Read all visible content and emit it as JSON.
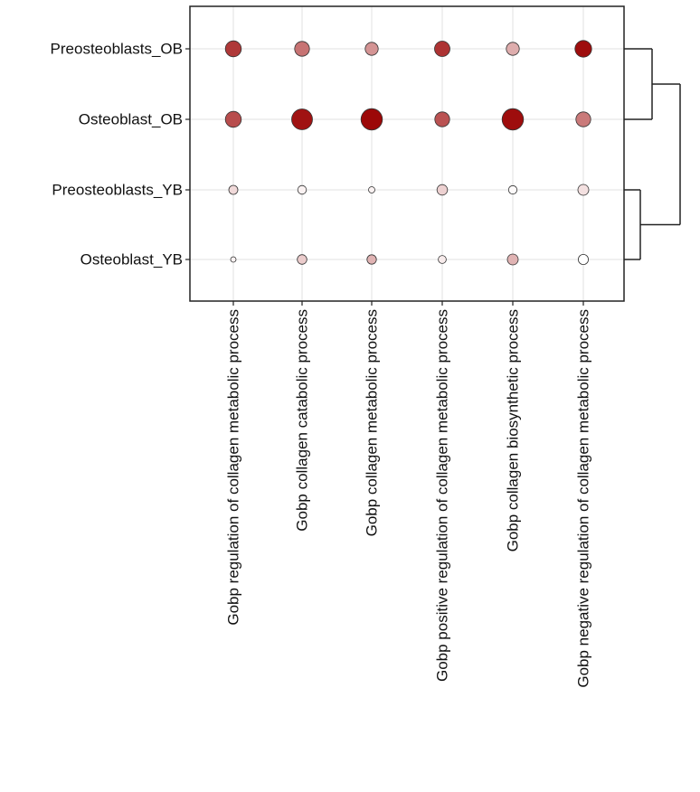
{
  "chart_data": {
    "type": "dot",
    "rows": [
      "Preosteoblasts_OB",
      "Osteoblast_OB",
      "Preosteoblasts_YB",
      "Osteoblast_YB"
    ],
    "columns": [
      "Gobp regulation of collagen metabolic process",
      "Gobp collagen catabolic process",
      "Gobp collagen metabolic process",
      "Gobp positive regulation of collagen metabolic process",
      "Gobp collagen biosynthetic process",
      "Gobp negative regulation of collagen metabolic process"
    ],
    "size": [
      [
        0.68,
        0.62,
        0.52,
        0.65,
        0.52,
        0.72
      ],
      [
        0.68,
        0.95,
        0.98,
        0.62,
        0.98,
        0.62
      ],
      [
        0.3,
        0.28,
        0.15,
        0.38,
        0.27,
        0.4
      ],
      [
        0.1,
        0.33,
        0.32,
        0.24,
        0.4,
        0.36
      ]
    ],
    "color": [
      [
        0.78,
        0.55,
        0.42,
        0.8,
        0.32,
        0.95
      ],
      [
        0.7,
        0.93,
        0.97,
        0.68,
        0.95,
        0.52
      ],
      [
        0.15,
        0.05,
        0.05,
        0.18,
        0.02,
        0.12
      ],
      [
        0.05,
        0.2,
        0.3,
        0.08,
        0.3,
        0.0
      ]
    ],
    "color_low": "#ffffff",
    "color_high": "#990000",
    "row_dendrogram": "((Preosteoblasts_OB,Osteoblast_OB),(Preosteoblasts_YB,Osteoblast_YB))",
    "grid": true,
    "legend": "none"
  }
}
